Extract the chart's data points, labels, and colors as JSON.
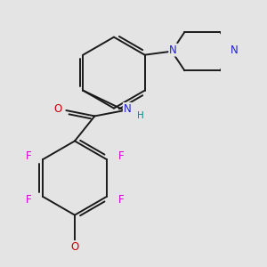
{
  "background_color": "#e4e4e4",
  "bond_color": "#1a1a1a",
  "atom_colors": {
    "F": "#cc00cc",
    "O": "#cc0000",
    "N": "#2222cc",
    "H": "#008888",
    "C": "#1a1a1a"
  },
  "lw": 1.4,
  "fs": 8.5
}
